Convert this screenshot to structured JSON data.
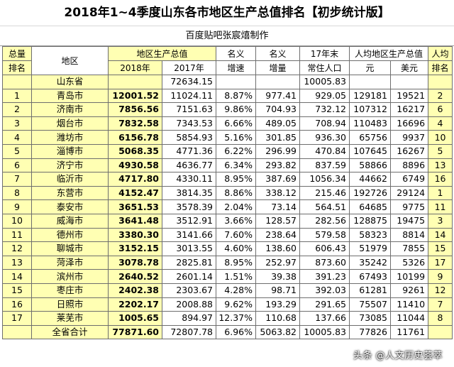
{
  "title": "2018年1~4季度山东各市地区生产总值排名【初步统计版】",
  "subtitle": "百度贴吧张宸熺制作",
  "headers": {
    "rank_top": "总量",
    "rank_bottom": "排名",
    "region": "地区",
    "gdp_group": "地区生产总值",
    "gdp_2018": "2018年",
    "gdp_2017": "2017年",
    "nominal_growth_top": "名义",
    "nominal_growth_bottom": "增速",
    "nominal_increase_top": "名义",
    "nominal_increase_bottom": "增量",
    "pop_top": "17年末",
    "pop_bottom": "常住人口",
    "percap_group": "人均地区生产总值",
    "percap_yuan": "元",
    "percap_usd": "美元",
    "percap_rank_top": "人均",
    "percap_rank_bottom": "排名"
  },
  "province_row": {
    "region": "山东省",
    "gdp_2017": "72634.15",
    "pop": "10005.83"
  },
  "rows": [
    {
      "rank": "1",
      "region": "青岛市",
      "gdp2018": "12001.52",
      "gdp2017": "11024.11",
      "growth": "8.87%",
      "increase": "977.41",
      "pop": "929.05",
      "yuan": "129181",
      "usd": "19521",
      "prank": "2"
    },
    {
      "rank": "2",
      "region": "济南市",
      "gdp2018": "7856.56",
      "gdp2017": "7151.63",
      "growth": "9.86%",
      "increase": "704.93",
      "pop": "732.12",
      "yuan": "107312",
      "usd": "16217",
      "prank": "6"
    },
    {
      "rank": "3",
      "region": "烟台市",
      "gdp2018": "7832.58",
      "gdp2017": "7343.53",
      "growth": "6.66%",
      "increase": "489.05",
      "pop": "708.94",
      "yuan": "110483",
      "usd": "16696",
      "prank": "4"
    },
    {
      "rank": "4",
      "region": "潍坊市",
      "gdp2018": "6156.78",
      "gdp2017": "5854.93",
      "growth": "5.16%",
      "increase": "301.85",
      "pop": "936.30",
      "yuan": "65756",
      "usd": "9937",
      "prank": "10"
    },
    {
      "rank": "5",
      "region": "淄博市",
      "gdp2018": "5068.35",
      "gdp2017": "4771.36",
      "growth": "6.22%",
      "increase": "296.99",
      "pop": "470.84",
      "yuan": "107645",
      "usd": "16267",
      "prank": "5"
    },
    {
      "rank": "6",
      "region": "济宁市",
      "gdp2018": "4930.58",
      "gdp2017": "4636.77",
      "growth": "6.34%",
      "increase": "293.82",
      "pop": "837.59",
      "yuan": "58866",
      "usd": "8896",
      "prank": "13"
    },
    {
      "rank": "7",
      "region": "临沂市",
      "gdp2018": "4717.80",
      "gdp2017": "4330.11",
      "growth": "8.95%",
      "increase": "387.69",
      "pop": "1056.34",
      "yuan": "44662",
      "usd": "6749",
      "prank": "16"
    },
    {
      "rank": "8",
      "region": "东营市",
      "gdp2018": "4152.47",
      "gdp2017": "3814.35",
      "growth": "8.86%",
      "increase": "338.12",
      "pop": "215.46",
      "yuan": "192726",
      "usd": "29124",
      "prank": "1"
    },
    {
      "rank": "9",
      "region": "泰安市",
      "gdp2018": "3651.53",
      "gdp2017": "3578.39",
      "growth": "2.04%",
      "increase": "73.14",
      "pop": "564.51",
      "yuan": "64685",
      "usd": "9775",
      "prank": "11"
    },
    {
      "rank": "10",
      "region": "威海市",
      "gdp2018": "3641.48",
      "gdp2017": "3512.91",
      "growth": "3.66%",
      "increase": "128.57",
      "pop": "282.56",
      "yuan": "128875",
      "usd": "19475",
      "prank": "3"
    },
    {
      "rank": "11",
      "region": "德州市",
      "gdp2018": "3380.30",
      "gdp2017": "3141.66",
      "growth": "7.60%",
      "increase": "238.64",
      "pop": "579.58",
      "yuan": "58323",
      "usd": "8814",
      "prank": "14"
    },
    {
      "rank": "12",
      "region": "聊城市",
      "gdp2018": "3152.15",
      "gdp2017": "3013.55",
      "growth": "4.60%",
      "increase": "138.60",
      "pop": "606.43",
      "yuan": "51979",
      "usd": "7855",
      "prank": "15"
    },
    {
      "rank": "13",
      "region": "菏泽市",
      "gdp2018": "3078.78",
      "gdp2017": "2825.81",
      "growth": "8.95%",
      "increase": "252.97",
      "pop": "873.60",
      "yuan": "35242",
      "usd": "5326",
      "prank": "17"
    },
    {
      "rank": "14",
      "region": "滨州市",
      "gdp2018": "2640.52",
      "gdp2017": "2601.14",
      "growth": "1.51%",
      "increase": "39.38",
      "pop": "391.23",
      "yuan": "67493",
      "usd": "10199",
      "prank": "9"
    },
    {
      "rank": "15",
      "region": "枣庄市",
      "gdp2018": "2402.38",
      "gdp2017": "2303.67",
      "growth": "4.28%",
      "increase": "98.71",
      "pop": "392.03",
      "yuan": "61281",
      "usd": "9261",
      "prank": "12"
    },
    {
      "rank": "16",
      "region": "日照市",
      "gdp2018": "2202.17",
      "gdp2017": "2008.88",
      "growth": "9.62%",
      "increase": "193.29",
      "pop": "291.65",
      "yuan": "75507",
      "usd": "11410",
      "prank": "7"
    },
    {
      "rank": "17",
      "region": "莱芜市",
      "gdp2018": "1005.65",
      "gdp2017": "894.97",
      "growth": "12.37%",
      "increase": "110.68",
      "pop": "137.66",
      "yuan": "73085",
      "usd": "11044",
      "prank": "8"
    }
  ],
  "total_row": {
    "region": "全省合计",
    "gdp2018": "77871.60",
    "gdp2017": "72807.78",
    "growth": "6.96%",
    "increase": "5063.82",
    "pop": "10005.83",
    "yuan": "77826",
    "usd": "11761"
  },
  "watermark": "头条 @人文历史荟萃",
  "colors": {
    "highlight": "#ffffb3",
    "border": "#6e6e6e"
  }
}
